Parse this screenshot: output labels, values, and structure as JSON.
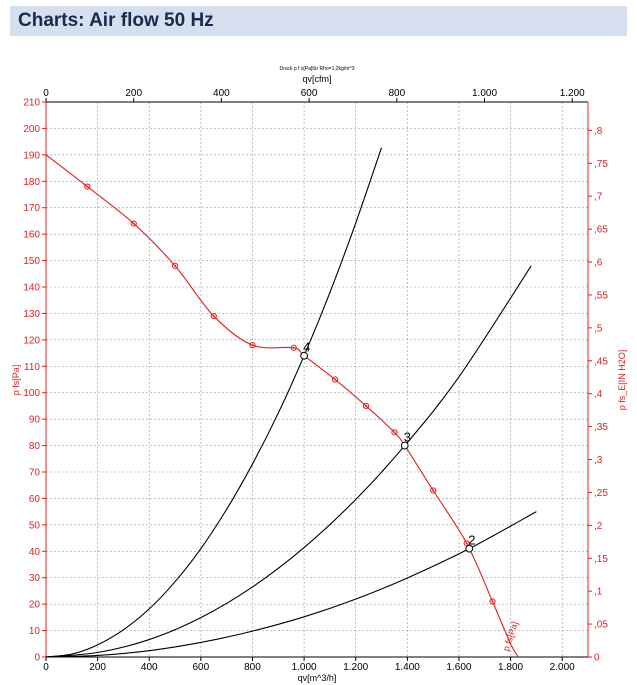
{
  "page": {
    "title": "Charts: Air flow 50 Hz"
  },
  "chart_data": {
    "type": "line",
    "note": "Druck p f s[Pa]für Rho=1,2kg/m^3",
    "x_bottom": {
      "label": "qv[m^3/h]",
      "range": [
        0,
        2100
      ],
      "ticks": [
        0,
        200,
        400,
        600,
        800,
        1000,
        1200,
        1400,
        1600,
        1800,
        2000
      ],
      "tick_labels": [
        "0",
        "200",
        "400",
        "600",
        "800",
        "1.000",
        "1.200",
        "1.400",
        "1.600",
        "1.800",
        "2.000"
      ]
    },
    "x_top": {
      "label": "qv[cfm]",
      "ticks": [
        0,
        200,
        400,
        600,
        800,
        1000,
        1200
      ],
      "tick_labels": [
        "0",
        "200",
        "400",
        "600",
        "800",
        "1.000",
        "1.200"
      ]
    },
    "y_left": {
      "label": "p fs[Pa]",
      "range": [
        0,
        210
      ],
      "ticks": [
        0,
        10,
        20,
        30,
        40,
        50,
        60,
        70,
        80,
        90,
        100,
        110,
        120,
        130,
        140,
        150,
        160,
        170,
        180,
        190,
        200,
        210
      ],
      "tick_labels": [
        "0",
        "10",
        "20",
        "30",
        "40",
        "50",
        "60",
        "70",
        "80",
        "90",
        "100",
        "110",
        "120",
        "130",
        "140",
        "150",
        "160",
        "170",
        "180",
        "190",
        "200",
        "210"
      ]
    },
    "y_right": {
      "label": "p fs_E[IN H2O]",
      "ticks": [
        0,
        0.05,
        0.1,
        0.15,
        0.2,
        0.25,
        0.3,
        0.35,
        0.4,
        0.45,
        0.5,
        0.55,
        0.6,
        0.65,
        0.7,
        0.75,
        0.8
      ],
      "tick_labels": [
        "0",
        ",05",
        ",1",
        ",15",
        ",2",
        ",25",
        ",3",
        ",35",
        ",4",
        ",45",
        ",5",
        ",55",
        ",6",
        ",65",
        ",7",
        ",75",
        ",8"
      ]
    },
    "grid": true,
    "fan_curve": {
      "name": "p fs[Pa]",
      "color": "#e02020",
      "x": [
        0,
        160,
        340,
        500,
        650,
        800,
        960,
        1000,
        1120,
        1240,
        1350,
        1390,
        1500,
        1630,
        1730,
        1800,
        1830
      ],
      "y": [
        190,
        178,
        164,
        148,
        129,
        118,
        117,
        114,
        105,
        95,
        85,
        80,
        63,
        43,
        21,
        5,
        0
      ]
    },
    "fan_curve_markers": {
      "x": [
        160,
        340,
        500,
        650,
        800,
        960,
        1120,
        1240,
        1350,
        1500,
        1630,
        1730
      ],
      "y": [
        178,
        164,
        148,
        129,
        118,
        117,
        105,
        95,
        85,
        63,
        43,
        21
      ]
    },
    "system_curves": [
      {
        "label": "4",
        "color": "#000000",
        "operating_point": [
          1000,
          114
        ],
        "x": [
          0,
          100,
          200,
          300,
          400,
          500,
          600,
          700,
          800,
          900,
          1000,
          1100,
          1200,
          1300
        ],
        "y": [
          0,
          1.1,
          4.6,
          10.3,
          18.2,
          28.5,
          41.0,
          55.9,
          73.0,
          92.3,
          114,
          137.9,
          164.2,
          192.7
        ]
      },
      {
        "label": "3",
        "color": "#000000",
        "operating_point": [
          1390,
          80
        ],
        "x": [
          0,
          200,
          400,
          600,
          800,
          1000,
          1200,
          1390,
          1600,
          1880
        ],
        "y": [
          0,
          1.7,
          6.6,
          14.9,
          26.5,
          41.4,
          59.6,
          80,
          106,
          148
        ]
      },
      {
        "label": "2",
        "color": "#000000",
        "operating_point": [
          1640,
          41
        ],
        "x": [
          0,
          200,
          400,
          600,
          800,
          1000,
          1200,
          1400,
          1640,
          1900
        ],
        "y": [
          0,
          0.6,
          2.4,
          5.5,
          9.8,
          15.2,
          21.9,
          29.9,
          41,
          55
        ]
      }
    ]
  }
}
